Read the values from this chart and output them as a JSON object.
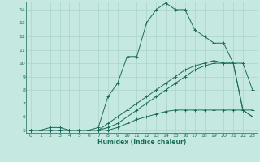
{
  "xlabel": "Humidex (Indice chaleur)",
  "background_color": "#c5e8e0",
  "grid_color": "#aad4cc",
  "line_color": "#1a6b5a",
  "xlim": [
    -0.5,
    23.5
  ],
  "ylim": [
    4.8,
    14.6
  ],
  "xticks": [
    0,
    1,
    2,
    3,
    4,
    5,
    6,
    7,
    8,
    9,
    10,
    11,
    12,
    13,
    14,
    15,
    16,
    17,
    18,
    19,
    20,
    21,
    22,
    23
  ],
  "yticks": [
    5,
    6,
    7,
    8,
    9,
    10,
    11,
    12,
    13,
    14
  ],
  "lines": [
    {
      "x": [
        0,
        1,
        2,
        3,
        4,
        5,
        6,
        7,
        8,
        9,
        10,
        11,
        12,
        13,
        14,
        15,
        16,
        17,
        18,
        19,
        20,
        21,
        22,
        23
      ],
      "y": [
        5,
        5,
        5.2,
        5.2,
        5,
        5,
        5,
        5.2,
        7.5,
        8.5,
        10.5,
        10.5,
        13,
        14,
        14.5,
        14,
        14,
        12.5,
        12,
        11.5,
        11.5,
        10,
        10,
        8
      ]
    },
    {
      "x": [
        0,
        1,
        2,
        3,
        4,
        5,
        6,
        7,
        8,
        9,
        10,
        11,
        12,
        13,
        14,
        15,
        16,
        17,
        18,
        19,
        20,
        21,
        22,
        23
      ],
      "y": [
        5,
        5,
        5,
        5,
        5,
        5,
        5,
        5,
        5.5,
        6,
        6.5,
        7,
        7.5,
        8,
        8.5,
        9,
        9.5,
        9.8,
        10,
        10.2,
        10,
        10,
        6.5,
        6
      ]
    },
    {
      "x": [
        0,
        1,
        2,
        3,
        4,
        5,
        6,
        7,
        8,
        9,
        10,
        11,
        12,
        13,
        14,
        15,
        16,
        17,
        18,
        19,
        20,
        21,
        22,
        23
      ],
      "y": [
        5,
        5,
        5,
        5,
        5,
        5,
        5,
        5,
        5.2,
        5.5,
        6,
        6.5,
        7,
        7.5,
        8,
        8.5,
        9,
        9.5,
        9.8,
        10,
        10,
        10,
        6.5,
        6
      ]
    },
    {
      "x": [
        0,
        1,
        2,
        3,
        4,
        5,
        6,
        7,
        8,
        9,
        10,
        11,
        12,
        13,
        14,
        15,
        16,
        17,
        18,
        19,
        20,
        21,
        22,
        23
      ],
      "y": [
        5,
        5,
        5,
        5,
        5,
        5,
        5,
        5,
        5,
        5.2,
        5.5,
        5.8,
        6,
        6.2,
        6.4,
        6.5,
        6.5,
        6.5,
        6.5,
        6.5,
        6.5,
        6.5,
        6.5,
        6.5
      ]
    }
  ]
}
